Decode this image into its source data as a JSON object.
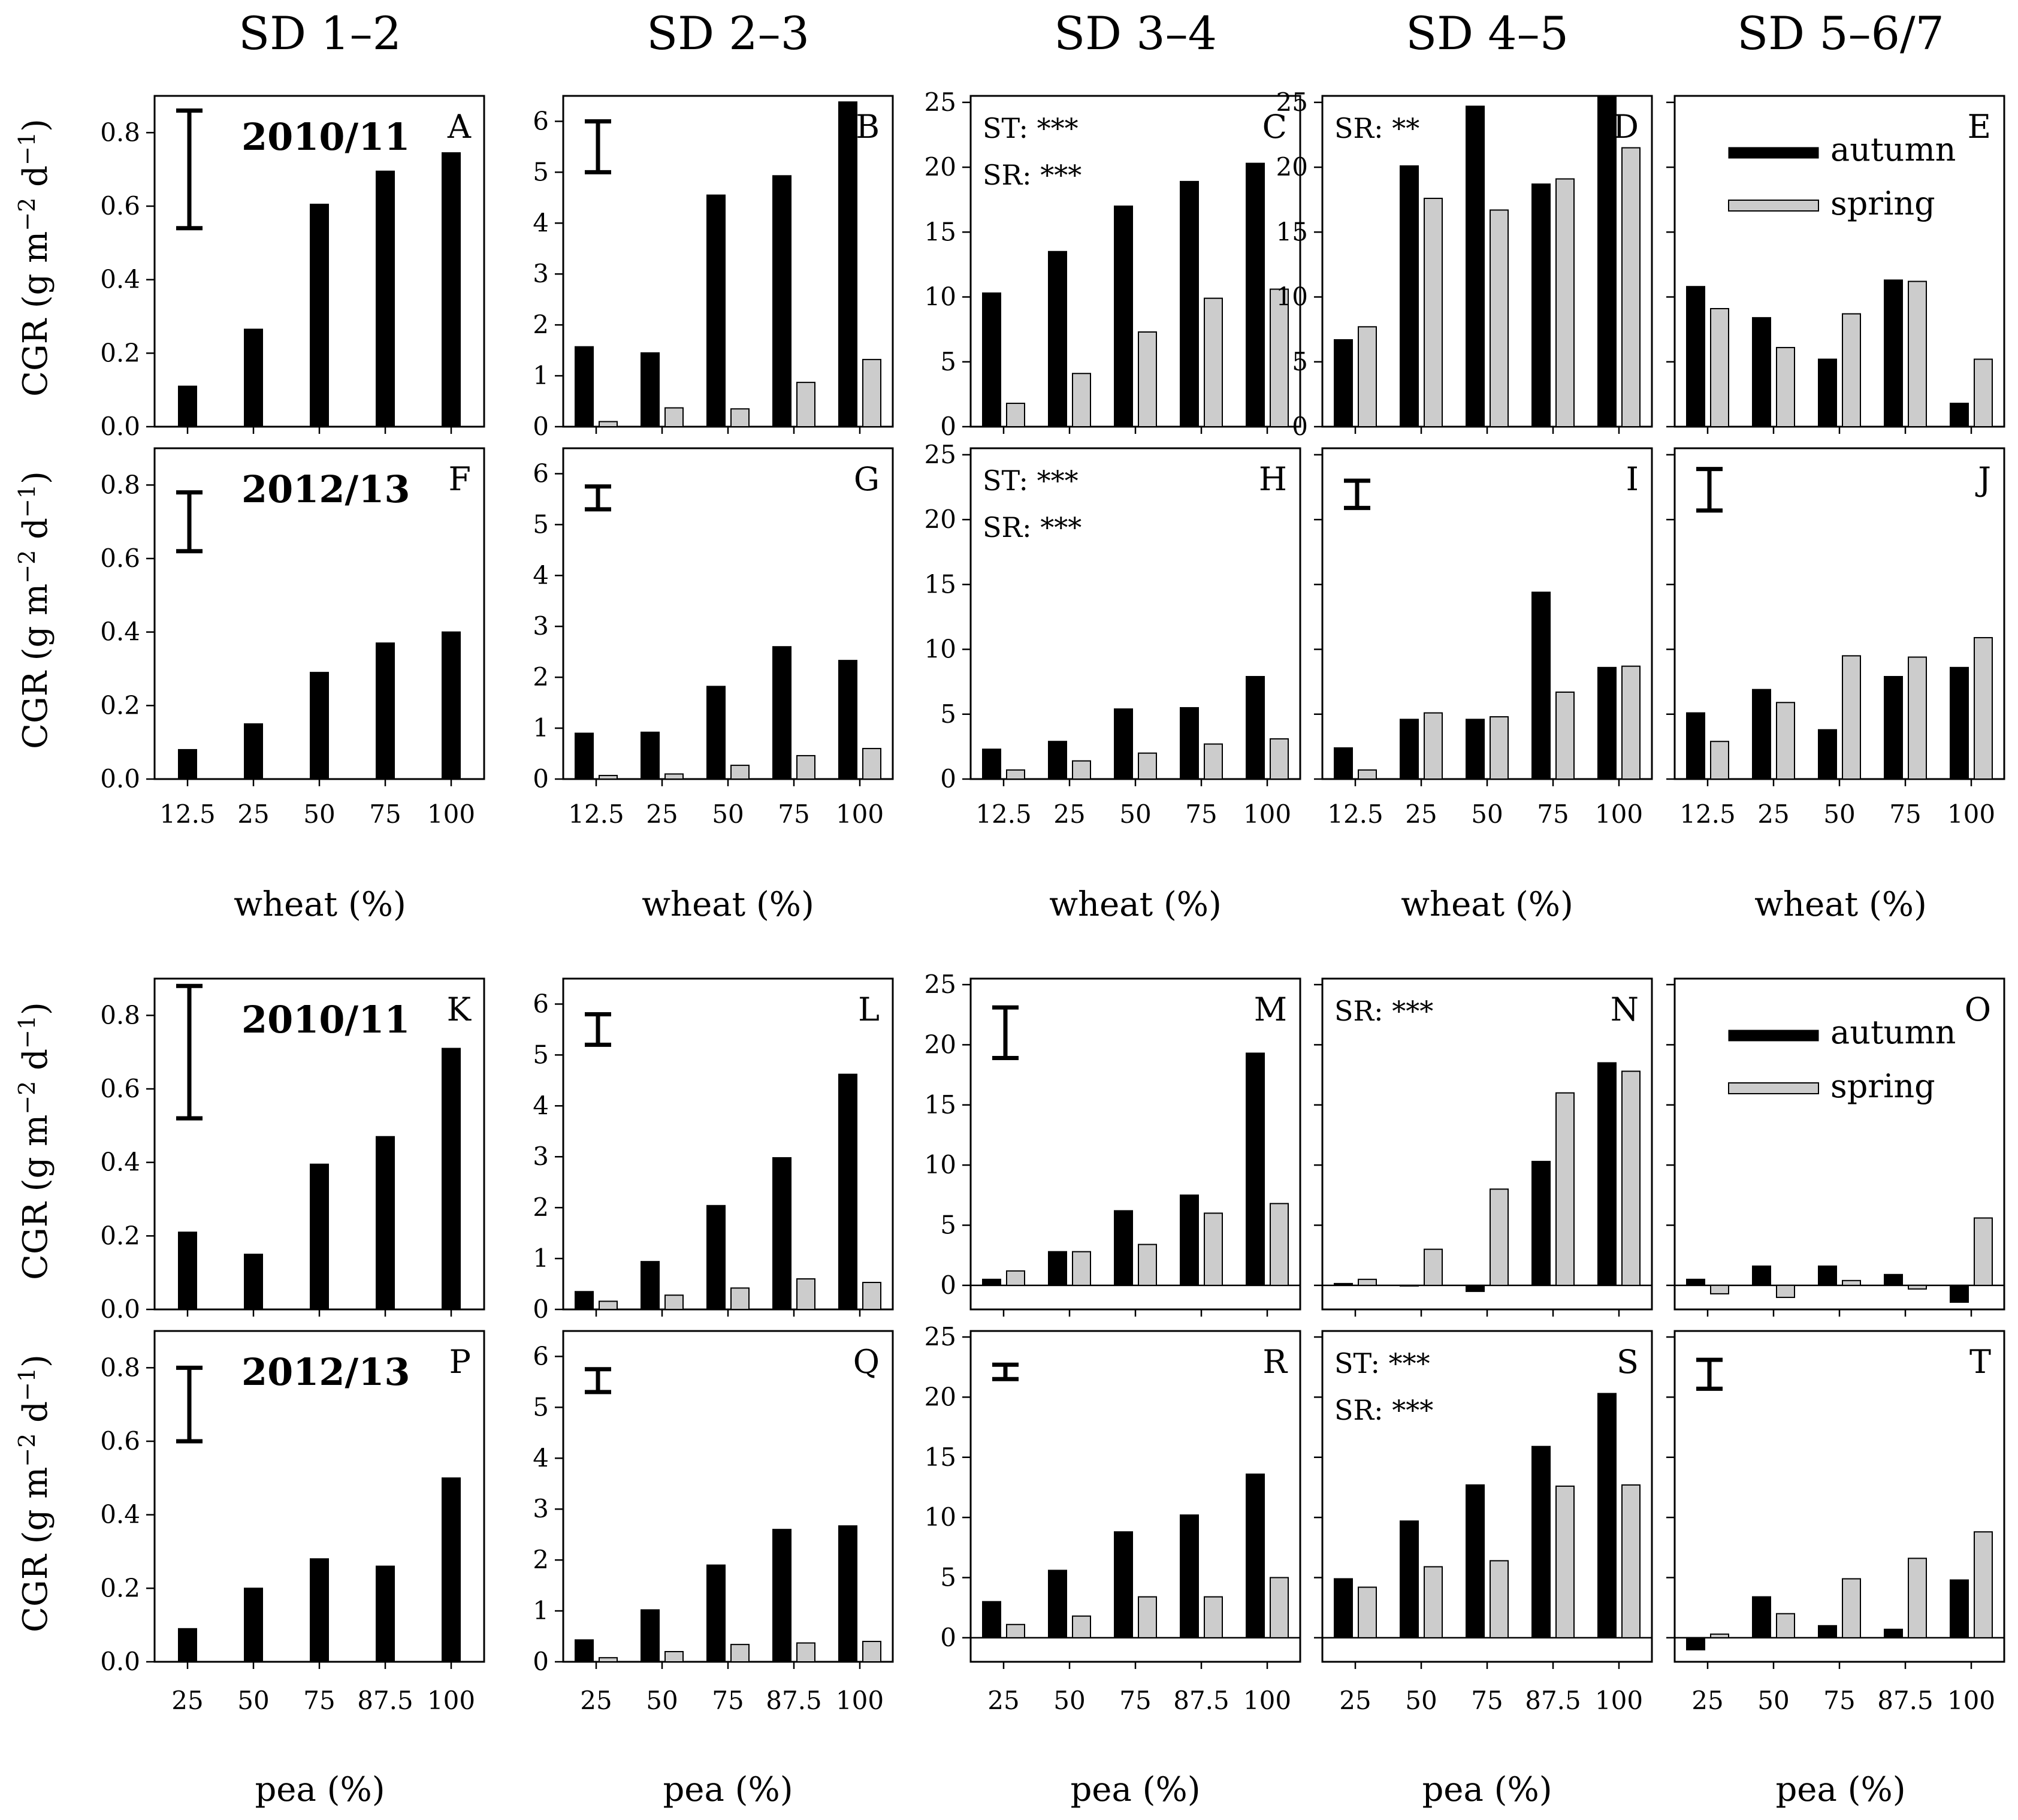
{
  "figure": {
    "column_titles": [
      "SD 1–2",
      "SD 2–3",
      "SD 3–4",
      "SD 4–5",
      "SD 5–6/7"
    ],
    "y_axis_label": {
      "main": "CGR (g m",
      "sup1": "−2",
      "mid": " d",
      "sup2": "−1",
      "end": ")"
    },
    "x_axis_label_wheat": "wheat (%)",
    "x_axis_label_pea": "pea (%)",
    "legend": {
      "autumn": "autumn",
      "spring": "spring"
    },
    "colors": {
      "autumn": "#000000",
      "spring": "#cccccc"
    }
  },
  "chart_data": [
    {
      "type": "bar",
      "panel": "A",
      "year": "2010/11",
      "crop": "wheat",
      "column": "SD 1–2",
      "categories": [
        "12.5",
        "25",
        "50",
        "75",
        "100"
      ],
      "ylim": [
        0,
        0.9
      ],
      "yticks": [
        0.0,
        0.2,
        0.4,
        0.6,
        0.8
      ],
      "ytick_labels": [
        "0.0",
        "0.2",
        "0.4",
        "0.6",
        "0.8"
      ],
      "series": [
        {
          "name": "autumn",
          "values": [
            0.11,
            0.265,
            0.605,
            0.695,
            0.745
          ]
        }
      ],
      "error_bar": [
        0.54,
        0.86
      ],
      "significance": []
    },
    {
      "type": "bar",
      "panel": "B",
      "crop": "wheat",
      "column": "SD 2–3",
      "categories": [
        "12.5",
        "25",
        "50",
        "75",
        "100"
      ],
      "ylim": [
        0,
        6.5
      ],
      "yticks": [
        0,
        1,
        2,
        3,
        4,
        5,
        6
      ],
      "ytick_labels": [
        "0",
        "1",
        "2",
        "3",
        "4",
        "5",
        "6"
      ],
      "series": [
        {
          "name": "autumn",
          "values": [
            1.57,
            1.45,
            4.55,
            4.93,
            6.38
          ]
        },
        {
          "name": "spring",
          "values": [
            0.1,
            0.37,
            0.35,
            0.87,
            1.32
          ]
        }
      ],
      "error_bar": [
        5.0,
        6.0
      ],
      "significance": []
    },
    {
      "type": "bar",
      "panel": "C",
      "crop": "wheat",
      "column": "SD 3–4",
      "categories": [
        "12.5",
        "25",
        "50",
        "75",
        "100"
      ],
      "ylim": [
        0,
        25.5
      ],
      "yticks": [
        0,
        5,
        10,
        15,
        20,
        25
      ],
      "ytick_labels": [
        "0",
        "5",
        "10",
        "15",
        "20",
        "25"
      ],
      "series": [
        {
          "name": "autumn",
          "values": [
            10.3,
            13.5,
            17.0,
            18.9,
            20.3
          ]
        },
        {
          "name": "spring",
          "values": [
            1.8,
            4.1,
            7.3,
            9.9,
            10.6
          ]
        }
      ],
      "significance": [
        "ST: ***",
        "SR: ***"
      ]
    },
    {
      "type": "bar",
      "panel": "D",
      "crop": "wheat",
      "column": "SD 4–5",
      "categories": [
        "12.5",
        "25",
        "50",
        "75",
        "100"
      ],
      "ylim": [
        0,
        25.5
      ],
      "yticks": [
        0,
        5,
        10,
        15,
        20,
        25
      ],
      "ytick_labels": [
        "0",
        "5",
        "10",
        "15",
        "20",
        "25"
      ],
      "series": [
        {
          "name": "autumn",
          "values": [
            6.7,
            20.1,
            24.7,
            18.7,
            25.4
          ]
        },
        {
          "name": "spring",
          "values": [
            7.7,
            17.6,
            16.7,
            19.1,
            21.5
          ]
        }
      ],
      "significance": [
        "SR: **"
      ]
    },
    {
      "type": "bar",
      "panel": "E",
      "crop": "wheat",
      "column": "SD 5–6/7",
      "categories": [
        "12.5",
        "25",
        "50",
        "75",
        "100"
      ],
      "ylim": [
        0,
        25.5
      ],
      "yticks": [
        0,
        5,
        10,
        15,
        20,
        25
      ],
      "ytick_labels": [],
      "series": [
        {
          "name": "autumn",
          "values": [
            10.8,
            8.4,
            5.2,
            11.3,
            1.8
          ]
        },
        {
          "name": "spring",
          "values": [
            9.1,
            6.1,
            8.7,
            11.2,
            5.2
          ]
        }
      ],
      "legend": true,
      "significance": []
    },
    {
      "type": "bar",
      "panel": "F",
      "year": "2012/13",
      "crop": "wheat",
      "column": "SD 1–2",
      "categories": [
        "12.5",
        "25",
        "50",
        "75",
        "100"
      ],
      "ylim": [
        0,
        0.9
      ],
      "yticks": [
        0.0,
        0.2,
        0.4,
        0.6,
        0.8
      ],
      "ytick_labels": [
        "0.0",
        "0.2",
        "0.4",
        "0.6",
        "0.8"
      ],
      "series": [
        {
          "name": "autumn",
          "values": [
            0.08,
            0.15,
            0.29,
            0.37,
            0.4
          ]
        }
      ],
      "error_bar": [
        0.62,
        0.78
      ],
      "significance": []
    },
    {
      "type": "bar",
      "panel": "G",
      "crop": "wheat",
      "column": "SD 2–3",
      "categories": [
        "12.5",
        "25",
        "50",
        "75",
        "100"
      ],
      "ylim": [
        0,
        6.5
      ],
      "yticks": [
        0,
        1,
        2,
        3,
        4,
        5,
        6
      ],
      "ytick_labels": [
        "0",
        "1",
        "2",
        "3",
        "4",
        "5",
        "6"
      ],
      "series": [
        {
          "name": "autumn",
          "values": [
            0.9,
            0.92,
            1.82,
            2.6,
            2.33
          ]
        },
        {
          "name": "spring",
          "values": [
            0.07,
            0.1,
            0.27,
            0.46,
            0.6
          ]
        }
      ],
      "error_bar": [
        5.3,
        5.75
      ],
      "significance": []
    },
    {
      "type": "bar",
      "panel": "H",
      "crop": "wheat",
      "column": "SD 3–4",
      "categories": [
        "12.5",
        "25",
        "50",
        "75",
        "100"
      ],
      "ylim": [
        0,
        25.5
      ],
      "yticks": [
        0,
        5,
        10,
        15,
        20,
        25
      ],
      "ytick_labels": [
        "0",
        "5",
        "10",
        "15",
        "20",
        "25"
      ],
      "series": [
        {
          "name": "autumn",
          "values": [
            2.3,
            2.9,
            5.4,
            5.5,
            7.9
          ]
        },
        {
          "name": "spring",
          "values": [
            0.7,
            1.4,
            2.0,
            2.7,
            3.1
          ]
        }
      ],
      "significance": [
        "ST: ***",
        "SR: ***"
      ]
    },
    {
      "type": "bar",
      "panel": "I",
      "crop": "wheat",
      "column": "SD 4–5",
      "categories": [
        "12.5",
        "25",
        "50",
        "75",
        "100"
      ],
      "ylim": [
        0,
        25.5
      ],
      "yticks": [
        0,
        5,
        10,
        15,
        20,
        25
      ],
      "ytick_labels": [],
      "series": [
        {
          "name": "autumn",
          "values": [
            2.4,
            4.6,
            4.6,
            14.4,
            8.6
          ]
        },
        {
          "name": "spring",
          "values": [
            0.7,
            5.1,
            4.8,
            6.7,
            8.7
          ]
        }
      ],
      "error_bar": [
        20.9,
        23.0
      ],
      "significance": []
    },
    {
      "type": "bar",
      "panel": "J",
      "crop": "wheat",
      "column": "SD 5–6/7",
      "categories": [
        "12.5",
        "25",
        "50",
        "75",
        "100"
      ],
      "ylim": [
        0,
        25.5
      ],
      "yticks": [
        0,
        5,
        10,
        15,
        20,
        25
      ],
      "ytick_labels": [],
      "series": [
        {
          "name": "autumn",
          "values": [
            5.1,
            6.9,
            3.8,
            7.9,
            8.6
          ]
        },
        {
          "name": "spring",
          "values": [
            2.9,
            5.9,
            9.5,
            9.4,
            10.9
          ]
        }
      ],
      "error_bar": [
        20.7,
        23.9
      ],
      "significance": []
    },
    {
      "type": "bar",
      "panel": "K",
      "year": "2010/11",
      "crop": "pea",
      "column": "SD 1–2",
      "categories": [
        "25",
        "50",
        "75",
        "87.5",
        "100"
      ],
      "ylim": [
        0,
        0.9
      ],
      "yticks": [
        0.0,
        0.2,
        0.4,
        0.6,
        0.8
      ],
      "ytick_labels": [
        "0.0",
        "0.2",
        "0.4",
        "0.6",
        "0.8"
      ],
      "series": [
        {
          "name": "autumn",
          "values": [
            0.21,
            0.15,
            0.395,
            0.47,
            0.71
          ]
        }
      ],
      "error_bar": [
        0.52,
        0.88
      ],
      "significance": []
    },
    {
      "type": "bar",
      "panel": "L",
      "crop": "pea",
      "column": "SD 2–3",
      "categories": [
        "25",
        "50",
        "75",
        "87.5",
        "100"
      ],
      "ylim": [
        0,
        6.5
      ],
      "yticks": [
        0,
        1,
        2,
        3,
        4,
        5,
        6
      ],
      "ytick_labels": [
        "0",
        "1",
        "2",
        "3",
        "4",
        "5",
        "6"
      ],
      "series": [
        {
          "name": "autumn",
          "values": [
            0.35,
            0.94,
            2.04,
            2.98,
            4.62
          ]
        },
        {
          "name": "spring",
          "values": [
            0.16,
            0.28,
            0.42,
            0.6,
            0.53
          ]
        }
      ],
      "error_bar": [
        5.2,
        5.8
      ],
      "significance": []
    },
    {
      "type": "bar",
      "panel": "M",
      "crop": "pea",
      "column": "SD 3–4",
      "categories": [
        "25",
        "50",
        "75",
        "87.5",
        "100"
      ],
      "ylim": [
        -2,
        25.5
      ],
      "yticks": [
        0,
        5,
        10,
        15,
        20,
        25
      ],
      "ytick_labels": [
        "0",
        "5",
        "10",
        "15",
        "20",
        "25"
      ],
      "series": [
        {
          "name": "autumn",
          "values": [
            0.5,
            2.8,
            6.2,
            7.5,
            19.3
          ]
        },
        {
          "name": "spring",
          "values": [
            1.2,
            2.8,
            3.4,
            6.0,
            6.8
          ]
        }
      ],
      "error_bar": [
        18.9,
        23.1
      ],
      "zero_line": true,
      "significance": []
    },
    {
      "type": "bar",
      "panel": "N",
      "crop": "pea",
      "column": "SD 4–5",
      "categories": [
        "25",
        "50",
        "75",
        "87.5",
        "100"
      ],
      "ylim": [
        -2,
        25.5
      ],
      "yticks": [
        0,
        5,
        10,
        15,
        20,
        25
      ],
      "ytick_labels": [],
      "series": [
        {
          "name": "autumn",
          "values": [
            0.15,
            0.0,
            -0.5,
            10.3,
            18.5
          ]
        },
        {
          "name": "spring",
          "values": [
            0.5,
            3.0,
            8.0,
            16.0,
            17.8
          ]
        }
      ],
      "zero_line": true,
      "significance": [
        "SR: ***"
      ]
    },
    {
      "type": "bar",
      "panel": "O",
      "crop": "pea",
      "column": "SD 5–6/7",
      "categories": [
        "25",
        "50",
        "75",
        "87.5",
        "100"
      ],
      "ylim": [
        -2,
        25.5
      ],
      "yticks": [
        0,
        5,
        10,
        15,
        20,
        25
      ],
      "ytick_labels": [],
      "series": [
        {
          "name": "autumn",
          "values": [
            0.5,
            1.6,
            1.6,
            0.9,
            -1.4
          ]
        },
        {
          "name": "spring",
          "values": [
            -0.7,
            -1.0,
            0.4,
            -0.3,
            5.6
          ]
        }
      ],
      "zero_line": true,
      "legend": true,
      "significance": []
    },
    {
      "type": "bar",
      "panel": "P",
      "year": "2012/13",
      "crop": "pea",
      "column": "SD 1–2",
      "categories": [
        "25",
        "50",
        "75",
        "87.5",
        "100"
      ],
      "ylim": [
        0,
        0.9
      ],
      "yticks": [
        0.0,
        0.2,
        0.4,
        0.6,
        0.8
      ],
      "ytick_labels": [
        "0.0",
        "0.2",
        "0.4",
        "0.6",
        "0.8"
      ],
      "series": [
        {
          "name": "autumn",
          "values": [
            0.09,
            0.2,
            0.28,
            0.26,
            0.5
          ]
        }
      ],
      "error_bar": [
        0.6,
        0.8
      ],
      "significance": []
    },
    {
      "type": "bar",
      "panel": "Q",
      "crop": "pea",
      "column": "SD 2–3",
      "categories": [
        "25",
        "50",
        "75",
        "87.5",
        "100"
      ],
      "ylim": [
        0,
        6.5
      ],
      "yticks": [
        0,
        1,
        2,
        3,
        4,
        5,
        6
      ],
      "ytick_labels": [
        "0",
        "1",
        "2",
        "3",
        "4",
        "5",
        "6"
      ],
      "series": [
        {
          "name": "autumn",
          "values": [
            0.43,
            1.02,
            1.9,
            2.6,
            2.67
          ]
        },
        {
          "name": "spring",
          "values": [
            0.08,
            0.2,
            0.34,
            0.37,
            0.4
          ]
        }
      ],
      "error_bar": [
        5.3,
        5.75
      ],
      "significance": []
    },
    {
      "type": "bar",
      "panel": "R",
      "crop": "pea",
      "column": "SD 3–4",
      "categories": [
        "25",
        "50",
        "75",
        "87.5",
        "100"
      ],
      "ylim": [
        -2,
        25.5
      ],
      "yticks": [
        0,
        5,
        10,
        15,
        20,
        25
      ],
      "ytick_labels": [
        "0",
        "5",
        "10",
        "15",
        "20",
        "25"
      ],
      "series": [
        {
          "name": "autumn",
          "values": [
            3.0,
            5.6,
            8.8,
            10.2,
            13.6
          ]
        },
        {
          "name": "spring",
          "values": [
            1.1,
            1.8,
            3.4,
            3.4,
            5.0
          ]
        }
      ],
      "error_bar": [
        21.5,
        22.7
      ],
      "zero_line": true,
      "significance": []
    },
    {
      "type": "bar",
      "panel": "S",
      "crop": "pea",
      "column": "SD 4–5",
      "categories": [
        "25",
        "50",
        "75",
        "87.5",
        "100"
      ],
      "ylim": [
        -2,
        25.5
      ],
      "yticks": [
        0,
        5,
        10,
        15,
        20,
        25
      ],
      "ytick_labels": [],
      "series": [
        {
          "name": "autumn",
          "values": [
            4.9,
            9.7,
            12.7,
            15.9,
            20.3
          ]
        },
        {
          "name": "spring",
          "values": [
            4.2,
            5.9,
            6.4,
            12.6,
            12.7
          ]
        }
      ],
      "zero_line": true,
      "significance": [
        "ST: ***",
        "SR: ***"
      ]
    },
    {
      "type": "bar",
      "panel": "T",
      "crop": "pea",
      "column": "SD 5–6/7",
      "categories": [
        "25",
        "50",
        "75",
        "87.5",
        "100"
      ],
      "ylim": [
        -2,
        25.5
      ],
      "yticks": [
        0,
        5,
        10,
        15,
        20,
        25
      ],
      "ytick_labels": [],
      "series": [
        {
          "name": "autumn",
          "values": [
            -1.0,
            3.4,
            1.0,
            0.7,
            4.8
          ]
        },
        {
          "name": "spring",
          "values": [
            0.3,
            2.0,
            4.9,
            6.6,
            8.8
          ]
        }
      ],
      "error_bar": [
        20.7,
        23.1
      ],
      "zero_line": true,
      "significance": []
    }
  ]
}
